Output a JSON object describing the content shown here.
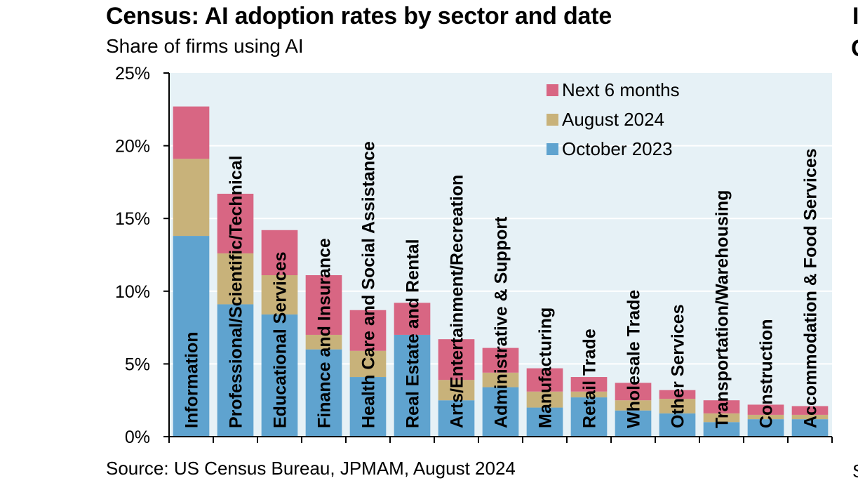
{
  "chart_data": {
    "type": "bar",
    "stacked": true,
    "title": "Census: AI adoption rates by sector and date",
    "subtitle": "Share of firms using AI",
    "source": "Source: US Census Bureau, JPMAM, August 2024",
    "categories": [
      "Information",
      "Professional/Scientific/Technical",
      "Educational Services",
      "Finance and Insurance",
      "Health Care and Social Assistance",
      "Real Estate and Rental",
      "Arts/Entertainment/Recreation",
      "Administrative & Support",
      "Manufacturing",
      "Retail Trade",
      "Wholesale Trade",
      "Other Services",
      "Transportation/Warehousing",
      "Construction",
      "Accommodation & Food Services"
    ],
    "series": [
      {
        "name": "October 2023",
        "color": "#5fa3cf",
        "values": [
          13.8,
          9.1,
          8.4,
          6.0,
          4.1,
          7.0,
          2.5,
          3.4,
          2.0,
          2.7,
          1.8,
          1.6,
          1.0,
          1.2,
          1.2
        ]
      },
      {
        "name": "August 2024",
        "color": "#c8b27a",
        "values": [
          5.3,
          3.5,
          2.7,
          1.0,
          1.8,
          0.0,
          1.4,
          1.0,
          1.1,
          0.4,
          0.7,
          1.0,
          0.6,
          0.3,
          0.3
        ]
      },
      {
        "name": "Next 6 months",
        "color": "#d86683",
        "values": [
          3.6,
          4.1,
          3.1,
          4.1,
          2.8,
          2.2,
          2.8,
          1.7,
          1.6,
          1.0,
          1.2,
          0.6,
          0.9,
          0.7,
          0.6
        ]
      }
    ],
    "ylim": [
      0,
      25
    ],
    "yticks": [
      "0%",
      "5%",
      "10%",
      "15%",
      "20%",
      "25%"
    ],
    "ytick_values": [
      0,
      5,
      10,
      15,
      20,
      25
    ],
    "grid": true,
    "legend_position": "top-right",
    "legend_order": [
      "Next 6 months",
      "August 2024",
      "October 2023"
    ],
    "plot_background": "#e6f1f6"
  },
  "edge_fragments": {
    "right_top_1": "I",
    "right_top_2": "C",
    "right_bottom": "S"
  }
}
